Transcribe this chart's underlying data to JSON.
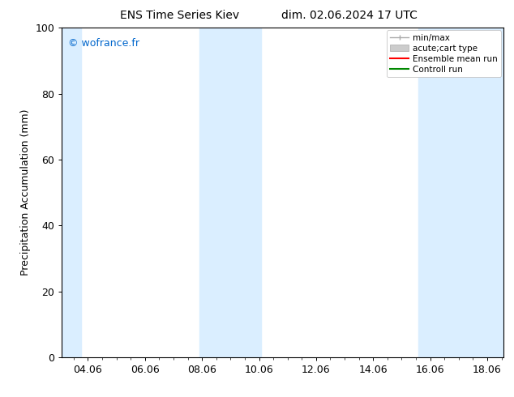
{
  "title_left": "ENS Time Series Kiev",
  "title_right": "dim. 02.06.2024 17 UTC",
  "ylabel": "Precipitation Accumulation (mm)",
  "watermark": "© wofrance.fr",
  "watermark_color": "#0066cc",
  "ylim": [
    0,
    100
  ],
  "yticks": [
    0,
    20,
    40,
    60,
    80,
    100
  ],
  "xtick_labels": [
    "04.06",
    "06.06",
    "08.06",
    "10.06",
    "12.06",
    "14.06",
    "16.06",
    "18.06"
  ],
  "xtick_positions": [
    4,
    6,
    8,
    10,
    12,
    14,
    16,
    18
  ],
  "xstart": 3.08,
  "xend": 18.58,
  "background_color": "#ffffff",
  "plot_bg_color": "#ffffff",
  "shaded_color": "#daeeff",
  "shaded_regions": [
    {
      "xmin": 3.08,
      "xmax": 3.75
    },
    {
      "xmin": 7.92,
      "xmax": 10.08
    },
    {
      "xmin": 15.58,
      "xmax": 18.58
    }
  ],
  "legend_entries": [
    {
      "label": "min/max",
      "color": "#aaaaaa"
    },
    {
      "label": "acute;cart type",
      "color": "#cccccc"
    },
    {
      "label": "Ensemble mean run",
      "color": "#ff0000"
    },
    {
      "label": "Controll run",
      "color": "#008800"
    }
  ],
  "grid_color": "#dddddd",
  "font_size": 9,
  "title_font_size": 10,
  "watermark_font_size": 9
}
